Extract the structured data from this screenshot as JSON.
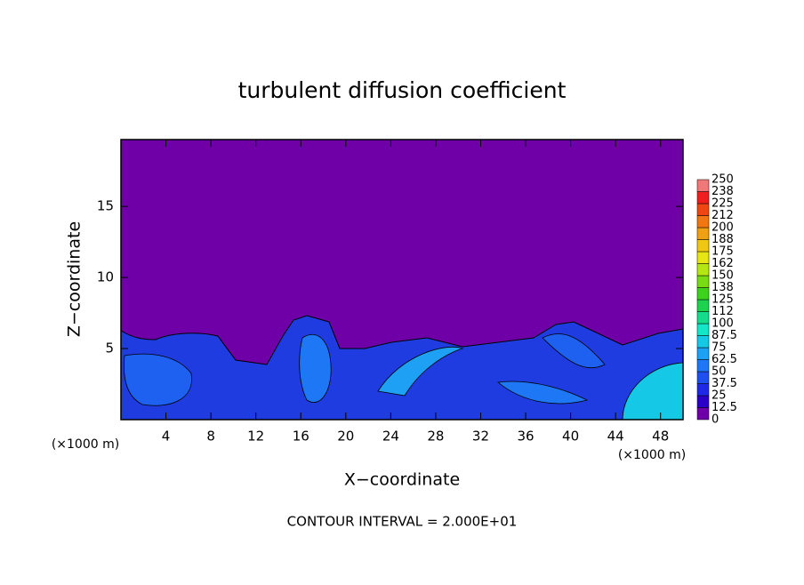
{
  "chart_data": {
    "type": "contour",
    "title": "turbulent diffusion coefficient",
    "x_label": "X−coordinate",
    "y_label": "Z−coordinate",
    "x_unit": "(×1000 m)",
    "y_unit": "(×1000 m)",
    "note": "CONTOUR INTERVAL = 2.000E+01",
    "xlim": [
      0,
      50
    ],
    "xticks": [
      4,
      8,
      12,
      16,
      20,
      24,
      28,
      32,
      36,
      40,
      44,
      48
    ],
    "ylim": [
      0,
      19.7
    ],
    "yticks": [
      5,
      10,
      15
    ],
    "colorbar": {
      "levels": [
        0,
        12.5,
        25,
        37.5,
        50,
        62.5,
        75,
        87.5,
        100,
        112,
        125,
        138,
        150,
        162,
        175,
        188,
        200,
        212,
        225,
        238,
        250
      ],
      "colors": [
        "#6f00a8",
        "#2a00c8",
        "#1e28e6",
        "#1e50f0",
        "#1e78f5",
        "#1ea0f5",
        "#14c8e6",
        "#14e6c8",
        "#14dc8c",
        "#1ed250",
        "#3cd21e",
        "#78dc14",
        "#b4e614",
        "#e6e614",
        "#f0c814",
        "#f0a014",
        "#f07814",
        "#f04614",
        "#f01e1e",
        "#f07878"
      ]
    }
  }
}
